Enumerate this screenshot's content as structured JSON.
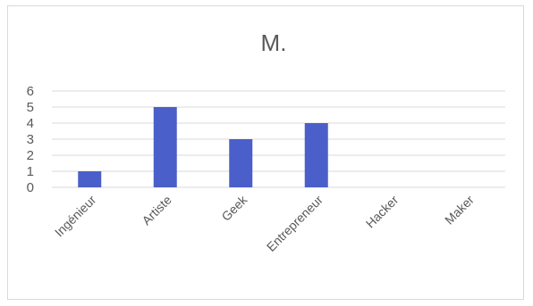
{
  "chart_data": {
    "type": "bar",
    "title": "M.",
    "categories": [
      "Ingénieur",
      "Artiste",
      "Geek",
      "Entrepreneur",
      "Hacker",
      "Maker"
    ],
    "values": [
      1,
      5,
      3,
      4,
      0,
      0
    ],
    "ylim": [
      0,
      6
    ],
    "yticks": [
      "0",
      "1",
      "2",
      "3",
      "4",
      "5",
      "6"
    ],
    "xlabel": "",
    "ylabel": "",
    "grid": true,
    "legend": "none",
    "bar_color": "#4a5fc9"
  }
}
